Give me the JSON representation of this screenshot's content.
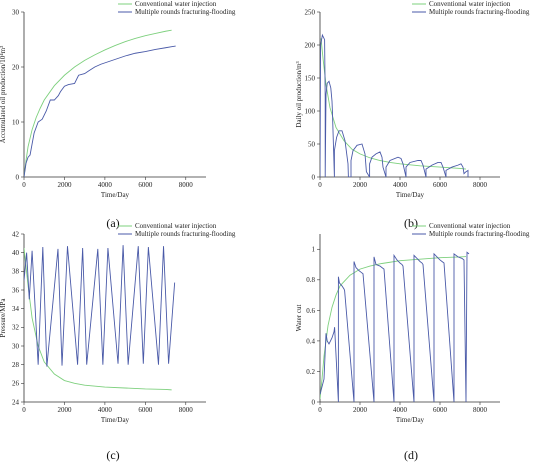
{
  "colors": {
    "green": "#7ed07e",
    "blue": "#4a5aa8",
    "axis": "#333333"
  },
  "chart_data": [
    {
      "panel": "(a)",
      "type": "line",
      "xlabel": "Time/Day",
      "ylabel": "Accumulated oil production/10⁴m³",
      "xlim": [
        0,
        9000
      ],
      "ylim": [
        0,
        30
      ],
      "xticks": [
        0,
        2000,
        4000,
        6000,
        8000
      ],
      "yticks": [
        0,
        10,
        20,
        30
      ],
      "legend": "top-right",
      "series": [
        {
          "name": "Conventional water injection",
          "color": "#7ed07e",
          "x": [
            0,
            100,
            200,
            400,
            600,
            800,
            1000,
            1500,
            2000,
            2500,
            3000,
            3500,
            4000,
            4500,
            5000,
            5500,
            6000,
            6500,
            7000,
            7300
          ],
          "y": [
            0,
            3,
            5.5,
            8.6,
            10.8,
            12.5,
            14,
            16.6,
            18.5,
            20,
            21.2,
            22.2,
            23.1,
            23.9,
            24.6,
            25.2,
            25.7,
            26.1,
            26.5,
            26.7
          ]
        },
        {
          "name": "Multiple rounds fracturing-flooding",
          "color": "#4a5aa8",
          "x": [
            0,
            100,
            200,
            300,
            400,
            500,
            700,
            900,
            1100,
            1300,
            1500,
            1700,
            1800,
            2000,
            2200,
            2500,
            2700,
            3000,
            3200,
            3500,
            3800,
            4200,
            4600,
            5000,
            5500,
            6000,
            6500,
            7000,
            7300,
            7500
          ],
          "y": [
            0,
            2.5,
            3.6,
            4,
            6,
            8,
            10,
            10.5,
            12,
            14,
            14,
            14.8,
            15.5,
            16.5,
            16.8,
            17,
            18.5,
            18.8,
            19.3,
            20,
            20.5,
            21,
            21.5,
            22,
            22.5,
            22.8,
            23.2,
            23.5,
            23.7,
            23.8
          ]
        }
      ]
    },
    {
      "panel": "(b)",
      "type": "line",
      "xlabel": "Time/Day",
      "ylabel": "Daily oil production/m³",
      "xlim": [
        0,
        9000
      ],
      "ylim": [
        0,
        250
      ],
      "xticks": [
        0,
        2000,
        4000,
        6000,
        8000
      ],
      "yticks": [
        0,
        50,
        100,
        150,
        200,
        250
      ],
      "legend": "top-right",
      "series": [
        {
          "name": "Conventional water injection",
          "color": "#7ed07e",
          "x": [
            50,
            150,
            300,
            500,
            800,
            1200,
            1600,
            2000,
            2500,
            3000,
            3500,
            4000,
            5000,
            6000,
            7000,
            7300
          ],
          "y": [
            210,
            180,
            140,
            105,
            75,
            55,
            42,
            35,
            29,
            25,
            22,
            20,
            17,
            15,
            13,
            12
          ]
        },
        {
          "name": "Multiple rounds fracturing-flooding",
          "color": "#4a5aa8",
          "x": [
            0,
            30,
            120,
            230,
            260,
            260,
            300,
            360,
            450,
            540,
            600,
            620,
            720,
            720,
            830,
            950,
            1100,
            1250,
            1400,
            1420,
            1550,
            1550,
            1650,
            1850,
            2100,
            2250,
            2320,
            2480,
            2480,
            2600,
            2800,
            3000,
            3100,
            3150,
            3300,
            3300,
            3500,
            3900,
            4050,
            4150,
            4300,
            4300,
            4500,
            4900,
            5050,
            5150,
            5300,
            5300,
            5600,
            5900,
            6050,
            6150,
            6300,
            6300,
            6600,
            6900,
            7050,
            7150,
            7200,
            7300,
            7400,
            7400
          ],
          "y": [
            0,
            200,
            215,
            208,
            120,
            0,
            125,
            142,
            145,
            135,
            115,
            100,
            0,
            40,
            60,
            70,
            70,
            55,
            20,
            0,
            0,
            25,
            40,
            48,
            50,
            35,
            8,
            0,
            20,
            30,
            35,
            38,
            30,
            15,
            0,
            15,
            25,
            30,
            28,
            20,
            0,
            15,
            22,
            25,
            25,
            18,
            0,
            12,
            18,
            22,
            22,
            15,
            0,
            10,
            15,
            18,
            20,
            15,
            5,
            8,
            10,
            0
          ]
        }
      ]
    },
    {
      "panel": "(c)",
      "type": "line",
      "xlabel": "Time/Day",
      "ylabel": "Pressure/MPa",
      "xlim": [
        0,
        9000
      ],
      "ylim": [
        24,
        42
      ],
      "xticks": [
        0,
        2000,
        4000,
        6000,
        8000
      ],
      "yticks": [
        24,
        26,
        28,
        30,
        32,
        34,
        36,
        38,
        40,
        42
      ],
      "legend": "top-right",
      "series": [
        {
          "name": "Conventional water injection",
          "color": "#7ed07e",
          "x": [
            0,
            200,
            400,
            700,
            1000,
            1500,
            2000,
            2500,
            3000,
            4000,
            5000,
            6000,
            7000,
            7300
          ],
          "y": [
            40.5,
            36.5,
            33,
            30,
            28.3,
            27,
            26.3,
            26,
            25.8,
            25.6,
            25.5,
            25.4,
            25.35,
            25.3
          ]
        },
        {
          "name": "Multiple rounds fracturing-flooding",
          "color": "#4a5aa8",
          "x": [
            0,
            130,
            260,
            400,
            700,
            930,
            1130,
            1680,
            1880,
            2150,
            2650,
            2900,
            3100,
            3650,
            3900,
            4150,
            4650,
            4900,
            5150,
            5650,
            5900,
            6150,
            6650,
            6900,
            7150,
            7450
          ],
          "y": [
            37,
            40,
            35,
            40.2,
            28,
            40.6,
            27.8,
            40.4,
            27.9,
            40.7,
            28,
            40.5,
            28,
            40.4,
            28,
            40.5,
            28.1,
            40.8,
            28,
            40.7,
            28.1,
            40.6,
            28,
            40.7,
            28.1,
            36.8
          ]
        }
      ]
    },
    {
      "panel": "(d)",
      "type": "line",
      "xlabel": "Time/Day",
      "ylabel": "Water cut",
      "xlim": [
        0,
        9000
      ],
      "ylim": [
        0,
        1.1
      ],
      "xticks": [
        0,
        2000,
        4000,
        6000,
        8000
      ],
      "yticks": [
        0,
        0.2,
        0.4,
        0.6,
        0.8,
        1.0
      ],
      "legend": "top-right",
      "series": [
        {
          "name": "Conventional water injection",
          "color": "#7ed07e",
          "x": [
            0,
            100,
            200,
            400,
            600,
            800,
            1000,
            1500,
            2000,
            2500,
            3000,
            3500,
            4000,
            5000,
            6000,
            7000,
            7300
          ],
          "y": [
            0.02,
            0.15,
            0.3,
            0.5,
            0.62,
            0.7,
            0.76,
            0.83,
            0.87,
            0.89,
            0.905,
            0.915,
            0.925,
            0.935,
            0.945,
            0.95,
            0.952
          ]
        },
        {
          "name": "Multiple rounds fracturing-flooding",
          "color": "#4a5aa8",
          "x": [
            0,
            100,
            200,
            300,
            360,
            450,
            600,
            700,
            730,
            920,
            920,
            970,
            1100,
            1200,
            1230,
            1700,
            1700,
            1800,
            1950,
            2050,
            2150,
            2700,
            2700,
            2800,
            3000,
            3100,
            3200,
            3700,
            3700,
            3850,
            4000,
            4100,
            4150,
            4700,
            4700,
            4850,
            5000,
            5100,
            5150,
            5700,
            5700,
            5850,
            6000,
            6100,
            6200,
            6700,
            6700,
            6900,
            7100,
            7200,
            7300,
            7350,
            7450
          ],
          "y": [
            0.05,
            0.1,
            0.15,
            0.45,
            0.4,
            0.38,
            0.42,
            0.46,
            0.49,
            0.0,
            0.82,
            0.78,
            0.76,
            0.74,
            0.73,
            0.0,
            0.92,
            0.88,
            0.86,
            0.85,
            0.84,
            0.0,
            0.95,
            0.9,
            0.89,
            0.88,
            0.87,
            0.0,
            0.96,
            0.93,
            0.91,
            0.9,
            0.89,
            0.0,
            0.96,
            0.94,
            0.92,
            0.91,
            0.9,
            0.0,
            0.97,
            0.95,
            0.93,
            0.92,
            0.91,
            0.0,
            0.97,
            0.95,
            0.94,
            0.93,
            0.0,
            0.98,
            0.97
          ]
        }
      ]
    }
  ]
}
